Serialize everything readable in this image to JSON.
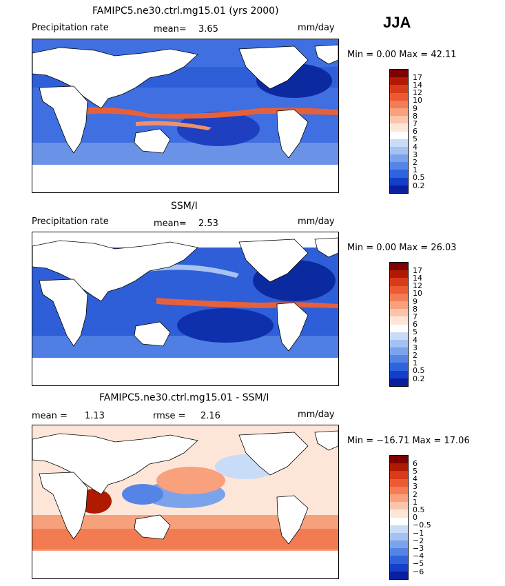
{
  "season": "JJA",
  "panels": [
    {
      "title": "FAMIPC5.ne30.ctrl.mg15.01 (yrs 2000)",
      "left_label": "Precipitation rate",
      "stat1_label": "mean=",
      "stat1_value": "3.65",
      "units": "mm/day",
      "minmax": "Min =   0.00 Max =  42.11",
      "ticks": [
        "17",
        "14",
        "12",
        "10",
        "9",
        "8",
        "7",
        "6",
        "5",
        "4",
        "3",
        "2",
        "1",
        "0.5",
        "0.2"
      ],
      "colors": [
        "#7f0000",
        "#b01a00",
        "#d93a1a",
        "#ec5a33",
        "#f47c55",
        "#f9a07c",
        "#fcc4aa",
        "#fde6d8",
        "#ffffff",
        "#c8dbf7",
        "#a3c1f2",
        "#7ba3ec",
        "#5485e6",
        "#2f63dd",
        "#143fc9",
        "#0a1f9e"
      ]
    },
    {
      "title": "SSM/I",
      "left_label": "Precipitation rate",
      "stat1_label": "mean=",
      "stat1_value": "2.53",
      "units": "mm/day",
      "minmax": "Min =   0.00 Max =  26.03",
      "ticks": [
        "17",
        "14",
        "12",
        "10",
        "9",
        "8",
        "7",
        "6",
        "5",
        "4",
        "3",
        "2",
        "1",
        "0.5",
        "0.2"
      ],
      "colors": [
        "#7f0000",
        "#b01a00",
        "#d93a1a",
        "#ec5a33",
        "#f47c55",
        "#f9a07c",
        "#fcc4aa",
        "#fde6d8",
        "#ffffff",
        "#c8dbf7",
        "#a3c1f2",
        "#7ba3ec",
        "#5485e6",
        "#2f63dd",
        "#143fc9",
        "#0a1f9e"
      ]
    },
    {
      "title": "FAMIPC5.ne30.ctrl.mg15.01 - SSM/I",
      "stat1_label": "mean =",
      "stat1_value": "1.13",
      "stat2_label": "rmse =",
      "stat2_value": "2.16",
      "units": "mm/day",
      "minmax": "Min = −16.71 Max =  17.06",
      "ticks": [
        "6",
        "5",
        "4",
        "3",
        "2",
        "1",
        "0.5",
        "0",
        "−0.5",
        "−1",
        "−2",
        "−3",
        "−4",
        "−5",
        "−6"
      ],
      "colors": [
        "#7f0000",
        "#b01a00",
        "#d93a1a",
        "#ec5a33",
        "#f47c55",
        "#f9a07c",
        "#fcc4aa",
        "#fde6d8",
        "#ffffff",
        "#c8dbf7",
        "#a3c1f2",
        "#7ba3ec",
        "#5485e6",
        "#2f63dd",
        "#143fc9",
        "#0a1f9e"
      ]
    }
  ]
}
